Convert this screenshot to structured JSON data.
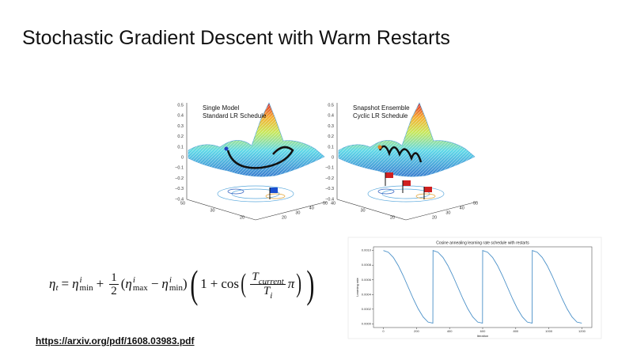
{
  "header": {
    "title": "Stochastic Gradient Descent with Warm Restarts"
  },
  "figures": [
    {
      "title": [
        "Single Model",
        "Standard LR Schedule"
      ],
      "z_ticks": [
        "0.5",
        "0.4",
        "0.3",
        "0.2",
        "0.1",
        "0",
        "−0.1",
        "−0.2",
        "−0.3",
        "−0.4"
      ],
      "base_ticks_left": [
        "50",
        "30",
        "20"
      ],
      "base_ticks_right": [
        "20",
        "30",
        "40",
        "50"
      ]
    },
    {
      "title": [
        "Snapshot Ensemble",
        "Cyclic LR Schedule"
      ],
      "z_ticks": [
        "0.5",
        "0.4",
        "0.3",
        "0.2",
        "0.1",
        "0",
        "−0.1",
        "−0.2",
        "−0.3",
        "−0.4"
      ],
      "base_ticks_left": [
        "40",
        "30",
        "20"
      ],
      "base_ticks_right": [
        "20",
        "30",
        "40",
        "50"
      ]
    }
  ],
  "formula": {
    "eta": "η",
    "t": "t",
    "eq": "=",
    "i": "i",
    "min": "min",
    "max": "max",
    "plus": "+",
    "minus": "−",
    "one": "1",
    "two": "2",
    "cos": "cos",
    "T": "T",
    "current": "current",
    "pi": "π"
  },
  "link": {
    "url": "https://arxiv.org/pdf/1608.03983.pdf"
  },
  "chart_data": {
    "type": "line",
    "title": "Cosine annealing learning rate schedule with restarts",
    "x_label": "Iteration",
    "y_label": "Learning rate",
    "color": "#4a90c8",
    "x": [
      0,
      30,
      60,
      90,
      120,
      150,
      180,
      210,
      240,
      270,
      299,
      300,
      330,
      360,
      390,
      420,
      450,
      480,
      510,
      540,
      570,
      599,
      600,
      630,
      660,
      690,
      720,
      750,
      780,
      810,
      840,
      870,
      899,
      900,
      930,
      960,
      990,
      1020,
      1050,
      1080,
      1110,
      1140,
      1170,
      1199
    ],
    "values": [
      0.001,
      0.000976,
      0.000905,
      0.000794,
      0.000655,
      0.0005,
      0.000345,
      0.000206,
      9.5e-05,
      2.4e-05,
      1e-05,
      0.001,
      0.000976,
      0.000905,
      0.000794,
      0.000655,
      0.0005,
      0.000345,
      0.000206,
      9.5e-05,
      2.4e-05,
      1e-05,
      0.001,
      0.000976,
      0.000905,
      0.000794,
      0.000655,
      0.0005,
      0.000345,
      0.000206,
      9.5e-05,
      2.4e-05,
      1e-05,
      0.001,
      0.000976,
      0.000905,
      0.000794,
      0.000655,
      0.0005,
      0.000345,
      0.000206,
      9.5e-05,
      2.4e-05,
      1e-05
    ],
    "xlim": [
      -60,
      1260
    ],
    "ylim": [
      -5e-05,
      0.00105
    ],
    "xticks": [
      0,
      200,
      400,
      600,
      800,
      1000,
      1200
    ],
    "yticks": [
      {
        "value": 0,
        "label": "0.0000"
      },
      {
        "value": 0.0002,
        "label": "0.0002"
      },
      {
        "value": 0.0004,
        "label": "0.0004"
      },
      {
        "value": 0.0006,
        "label": "0.0006"
      },
      {
        "value": 0.0008,
        "label": "0.0008"
      },
      {
        "value": 0.001,
        "label": "0.0010"
      }
    ]
  }
}
